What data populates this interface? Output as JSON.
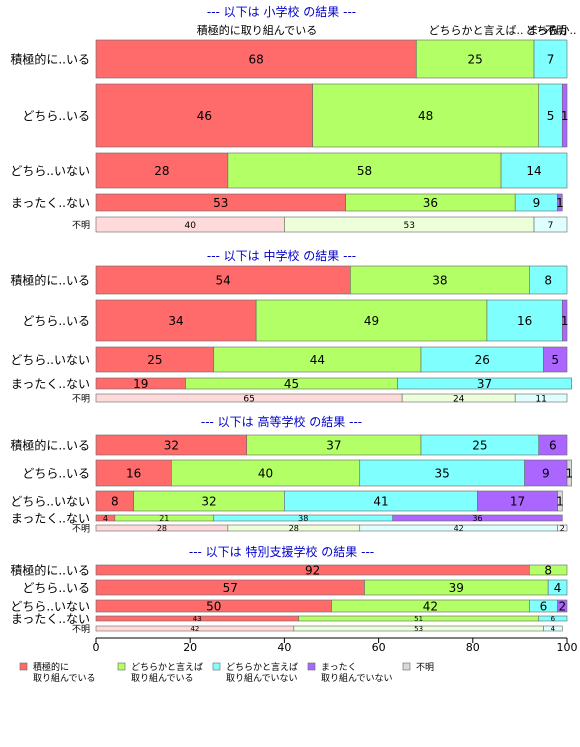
{
  "chart_data": {
    "type": "bar",
    "orientation": "horizontal",
    "stacked": true,
    "xlim": [
      0,
      100
    ],
    "x_ticks": [
      0,
      20,
      40,
      60,
      80,
      100
    ],
    "colors": [
      "#ff6b6b",
      "#b3ff66",
      "#80ffff",
      "#aa66ff",
      "#d9d9d9"
    ],
    "legend": {
      "placement": "bottom",
      "entries": [
        [
          "積極的に",
          "取り組んでいる"
        ],
        [
          "どちらかと言えば",
          "取り組んでいる"
        ],
        [
          "どちらかと言えば",
          "取り組んでいない"
        ],
        [
          "まったく",
          "取り組んでいない"
        ],
        [
          "不明"
        ]
      ]
    },
    "top_labels": [
      "積極的に取り組んでいる",
      "どちらかと言えば..",
      "どちらか..",
      "まった..",
      "不明"
    ],
    "sections": [
      {
        "title": "--- 以下は 小学校 の結果 ---",
        "rows": [
          {
            "label": "積極的に..いる",
            "values": [
              68,
              25,
              7,
              0,
              0
            ]
          },
          {
            "label": "どちら..いる",
            "values": [
              46,
              48,
              5,
              1,
              0
            ]
          },
          {
            "label": "どちら..いない",
            "values": [
              28,
              58,
              14,
              0,
              0
            ]
          },
          {
            "label": "まったく..ない",
            "values": [
              53,
              36,
              9,
              1,
              0
            ]
          },
          {
            "label": "不明",
            "values": [
              40,
              53,
              7,
              0,
              0
            ],
            "faded": true
          }
        ]
      },
      {
        "title": "--- 以下は 中学校 の結果 ---",
        "rows": [
          {
            "label": "積極的に..いる",
            "values": [
              54,
              38,
              8,
              0,
              0
            ]
          },
          {
            "label": "どちら..いる",
            "values": [
              34,
              49,
              16,
              1,
              0
            ]
          },
          {
            "label": "どちら..いない",
            "values": [
              25,
              44,
              26,
              5,
              0
            ]
          },
          {
            "label": "まったく..ない",
            "values": [
              19,
              45,
              37,
              0,
              0
            ]
          },
          {
            "label": "不明",
            "values": [
              65,
              24,
              11,
              0,
              0
            ],
            "faded": true
          }
        ]
      },
      {
        "title": "--- 以下は 高等学校 の結果 ---",
        "rows": [
          {
            "label": "積極的に..いる",
            "values": [
              32,
              37,
              25,
              6,
              0
            ]
          },
          {
            "label": "どちら..いる",
            "values": [
              16,
              40,
              35,
              9,
              1
            ]
          },
          {
            "label": "どちら..いない",
            "values": [
              8,
              32,
              41,
              17,
              1
            ]
          },
          {
            "label": "まったく..ない",
            "values": [
              4,
              21,
              38,
              36,
              0
            ]
          },
          {
            "label": "不明",
            "values": [
              28,
              28,
              42,
              0,
              2
            ],
            "faded": true
          }
        ]
      },
      {
        "title": "--- 以下は 特別支援学校 の結果 ---",
        "rows": [
          {
            "label": "積極的に..いる",
            "values": [
              92,
              8,
              0,
              0,
              0
            ]
          },
          {
            "label": "どちら..いる",
            "values": [
              57,
              39,
              4,
              0,
              0
            ]
          },
          {
            "label": "どちら..いない",
            "values": [
              50,
              42,
              6,
              2,
              0
            ]
          },
          {
            "label": "まったく..ない",
            "values": [
              43,
              51,
              6,
              0,
              0
            ]
          },
          {
            "label": "不明",
            "values": [
              42,
              53,
              4,
              0,
              0
            ],
            "faded": true
          }
        ]
      }
    ]
  }
}
